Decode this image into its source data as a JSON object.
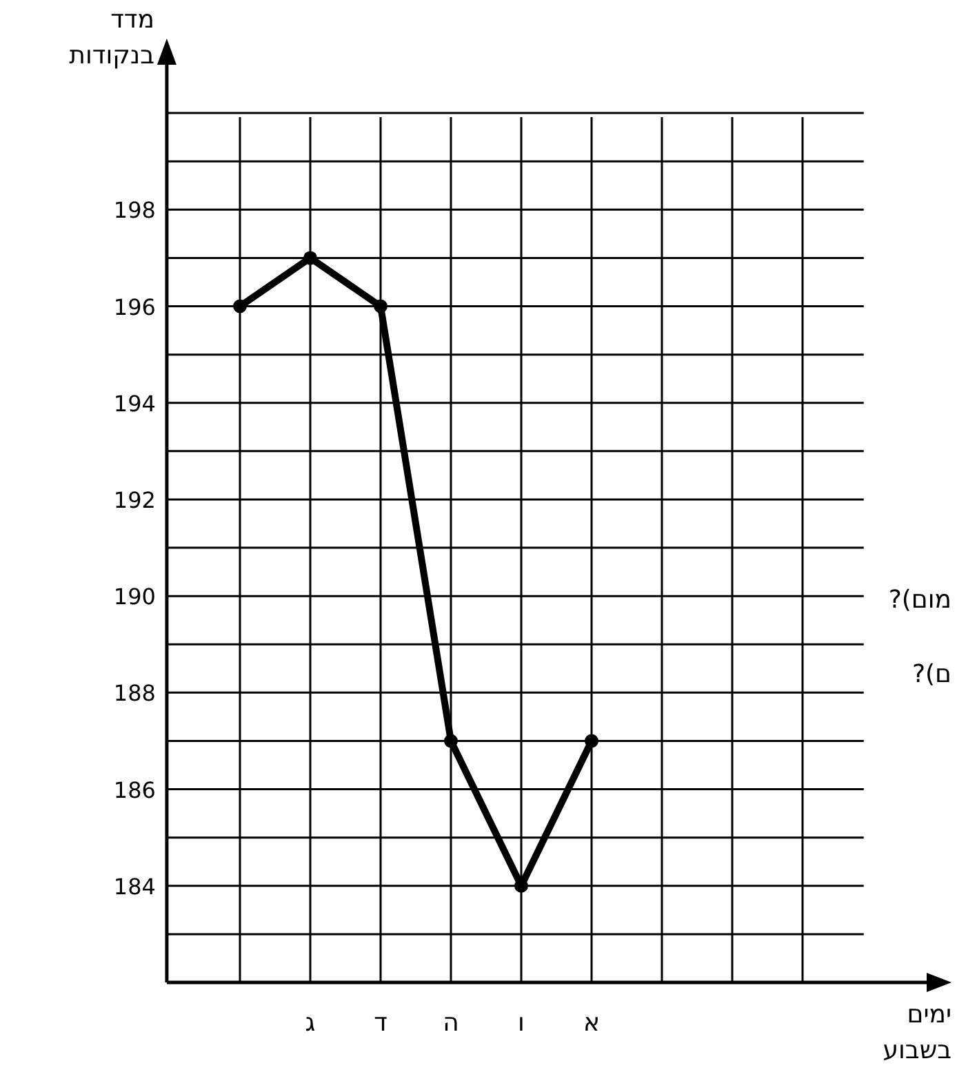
{
  "chart_data": {
    "type": "line",
    "xlabel": "ימים\nבשבוע",
    "ylabel": "מדד\nבנקודות",
    "categories": [
      null,
      "ג",
      "ד",
      "ה",
      "ו",
      "א",
      null,
      null,
      null
    ],
    "series": [
      {
        "color": "#000000",
        "values": [
          196,
          197,
          196,
          187,
          184,
          187,
          null,
          null,
          null
        ]
      }
    ],
    "ylim": [
      182,
      201
    ],
    "yticks": [
      {
        "value": 183,
        "label": null
      },
      184,
      {
        "value": 185,
        "label": null
      },
      186,
      {
        "value": 187,
        "label": null
      },
      188,
      {
        "value": 189,
        "label": null
      },
      190,
      {
        "value": 191,
        "label": null
      },
      192,
      {
        "value": 193,
        "label": null
      },
      194,
      {
        "value": 195,
        "label": null
      },
      196,
      {
        "value": 197,
        "label": null
      },
      198,
      {
        "value": 199,
        "label": null
      },
      {
        "value": 200,
        "label": null
      }
    ],
    "grid": true,
    "marker": "circle",
    "line_style": "solid",
    "annotations": [
      "מום)?",
      "ם)?"
    ]
  }
}
